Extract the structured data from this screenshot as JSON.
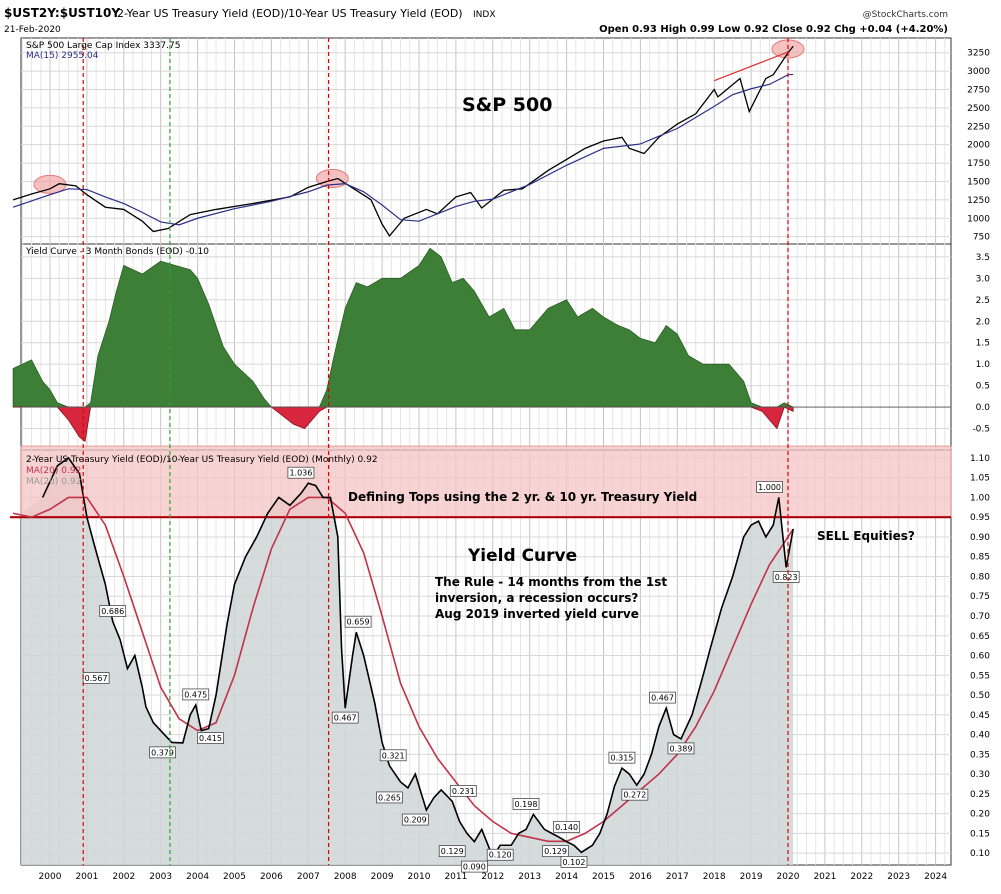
{
  "header": {
    "symbol": "$UST2Y:$UST10Y",
    "name": "2-Year US Treasury Yield (EOD)/10-Year US Treasury Yield (EOD)",
    "exchange": "INDX",
    "credit": "@StockCharts.com",
    "date": "21-Feb-2020",
    "ohlc": "Open 0.93  High 0.99  Low 0.92  Close 0.92  Chg +0.04 (+4.20%)"
  },
  "colors": {
    "green_fill": "#3d7f36",
    "red_fill": "#d7263d",
    "ma_red": "#c0334a",
    "sp_ma": "#2c2f88",
    "band_fill": "#f5c4c4",
    "area_fill": "#cfd6d6",
    "threshold": "#b0000a",
    "event_red": "#e00000",
    "event_green": "#2ea32e"
  },
  "chart_data": [
    {
      "type": "line",
      "panel": "S&P 500",
      "legend": [
        "S&P 500 Large Cap Index 3337.75",
        "MA(15) 2955.04"
      ],
      "annotation": "S&P 500",
      "ylim": [
        650,
        3450
      ],
      "yticks": [
        750,
        1000,
        1250,
        1500,
        1750,
        2000,
        2250,
        2500,
        2750,
        3000,
        3250
      ],
      "series": [
        {
          "name": "S&P 500 Large Cap Index",
          "x": [
            1999.0,
            1999.5,
            2000.0,
            2000.25,
            2000.7,
            2001.0,
            2001.5,
            2002.0,
            2002.5,
            2002.8,
            2003.2,
            2003.8,
            2004.5,
            2005.5,
            2006.5,
            2007.0,
            2007.5,
            2007.8,
            2008.3,
            2008.7,
            2009.0,
            2009.2,
            2009.6,
            2010.2,
            2010.5,
            2011.0,
            2011.4,
            2011.7,
            2012.3,
            2012.8,
            2013.5,
            2014.0,
            2014.5,
            2015.0,
            2015.5,
            2015.7,
            2016.1,
            2016.5,
            2017.0,
            2017.5,
            2018.0,
            2018.1,
            2018.7,
            2018.95,
            2019.4,
            2019.6,
            2020.0,
            2020.14
          ],
          "y": [
            1250,
            1330,
            1400,
            1470,
            1440,
            1320,
            1150,
            1120,
            960,
            820,
            860,
            1050,
            1120,
            1200,
            1290,
            1420,
            1500,
            1540,
            1380,
            1250,
            920,
            760,
            1000,
            1120,
            1060,
            1290,
            1350,
            1140,
            1380,
            1400,
            1650,
            1800,
            1950,
            2050,
            2100,
            1950,
            1880,
            2100,
            2280,
            2420,
            2750,
            2650,
            2900,
            2450,
            2900,
            2950,
            3250,
            3337
          ]
        },
        {
          "name": "MA(15)",
          "x": [
            1999.0,
            2000.0,
            2000.5,
            2001.0,
            2001.5,
            2002.0,
            2002.5,
            2003.0,
            2003.5,
            2004.0,
            2005.0,
            2006.0,
            2007.0,
            2007.5,
            2008.0,
            2008.5,
            2009.0,
            2009.5,
            2010.0,
            2010.5,
            2011.0,
            2011.5,
            2012.0,
            2013.0,
            2014.0,
            2015.0,
            2016.0,
            2017.0,
            2018.0,
            2018.5,
            2019.0,
            2019.5,
            2020.0,
            2020.14
          ],
          "y": [
            1150,
            1320,
            1400,
            1390,
            1290,
            1200,
            1080,
            950,
            910,
            1000,
            1130,
            1230,
            1360,
            1450,
            1470,
            1360,
            1180,
            980,
            960,
            1060,
            1160,
            1230,
            1260,
            1460,
            1720,
            1950,
            2010,
            2220,
            2520,
            2680,
            2760,
            2820,
            2950,
            2955
          ]
        }
      ]
    },
    {
      "type": "area",
      "panel": "Yield Curve - 3 Month Bonds",
      "legend": [
        "Yield Curve - 3 Month Bonds (EOD) -0.10"
      ],
      "ylim": [
        -1.0,
        3.8
      ],
      "yticks": [
        -0.5,
        0.0,
        0.5,
        1.0,
        1.5,
        2.0,
        2.5,
        3.0,
        3.5
      ],
      "x": [
        1999.0,
        1999.5,
        1999.8,
        2000.0,
        2000.2,
        2000.5,
        2000.8,
        2000.95,
        2001.1,
        2001.3,
        2001.6,
        2001.8,
        2002.0,
        2002.5,
        2003.0,
        2003.4,
        2003.8,
        2004.0,
        2004.3,
        2004.7,
        2005.0,
        2005.5,
        2005.8,
        2006.0,
        2006.3,
        2006.6,
        2006.9,
        2007.1,
        2007.3,
        2007.5,
        2007.7,
        2008.0,
        2008.3,
        2008.6,
        2009.0,
        2009.5,
        2010.0,
        2010.3,
        2010.6,
        2010.9,
        2011.2,
        2011.5,
        2011.9,
        2012.3,
        2012.6,
        2013.0,
        2013.5,
        2014.0,
        2014.3,
        2014.7,
        2015.0,
        2015.4,
        2015.7,
        2016.0,
        2016.4,
        2016.7,
        2017.0,
        2017.3,
        2017.7,
        2018.0,
        2018.4,
        2018.8,
        2019.0,
        2019.3,
        2019.5,
        2019.7,
        2019.9,
        2020.14
      ],
      "y": [
        0.9,
        1.1,
        0.6,
        0.4,
        0.1,
        -0.3,
        -0.7,
        -0.8,
        0.1,
        1.2,
        2.0,
        2.7,
        3.3,
        3.1,
        3.4,
        3.3,
        3.2,
        3.0,
        2.4,
        1.4,
        1.0,
        0.6,
        0.2,
        0.0,
        -0.2,
        -0.4,
        -0.5,
        -0.3,
        -0.1,
        0.4,
        1.2,
        2.3,
        2.9,
        2.8,
        3.0,
        3.0,
        3.3,
        3.7,
        3.5,
        2.9,
        3.0,
        2.7,
        2.1,
        2.3,
        1.8,
        1.8,
        2.3,
        2.5,
        2.1,
        2.3,
        2.1,
        1.9,
        1.8,
        1.6,
        1.5,
        1.9,
        1.7,
        1.2,
        1.0,
        1.0,
        1.0,
        0.6,
        0.1,
        -0.1,
        -0.3,
        -0.5,
        0.1,
        -0.1
      ]
    },
    {
      "type": "line",
      "panel": "Yield Curve",
      "legend": [
        "2-Year US Treasury Yield (EOD)/10-Year US Treasury Yield (EOD) (Monthly) 0.92",
        "MA(20) 0.92",
        "MA(20) 0.92"
      ],
      "band_title": "Defining Tops using the 2 yr. & 10 yr. Treasury Yield",
      "annotation_title": "Yield Curve",
      "rule_text": [
        "The Rule - 14 months from the 1st",
        "inversion, a recession occurs?",
        "Aug 2019 inverted yield curve"
      ],
      "sell_text": "SELL Equities?",
      "ylim": [
        0.07,
        1.12
      ],
      "yticks": [
        0.1,
        0.15,
        0.2,
        0.25,
        0.3,
        0.35,
        0.4,
        0.45,
        0.5,
        0.55,
        0.6,
        0.65,
        0.7,
        0.75,
        0.8,
        0.85,
        0.9,
        0.95,
        1.0,
        1.05,
        1.1
      ],
      "band": [
        0.95,
        1.13
      ],
      "threshold": 0.95,
      "series": [
        {
          "name": "2-Year US Treasury Yield (EOD)/10-Year US Treasury Yield (EOD)",
          "x": [
            1999.8,
            2000.2,
            2000.5,
            2000.8,
            2001.0,
            2001.2,
            2001.5,
            2001.7,
            2001.9,
            2002.1,
            2002.3,
            2002.5,
            2002.6,
            2002.8,
            2003.1,
            2003.3,
            2003.6,
            2003.8,
            2003.95,
            2004.1,
            2004.3,
            2004.5,
            2004.8,
            2005.0,
            2005.3,
            2005.6,
            2005.9,
            2006.2,
            2006.5,
            2006.8,
            2007.0,
            2007.2,
            2007.4,
            2007.6,
            2007.8,
            2007.9,
            2008.0,
            2008.2,
            2008.3,
            2008.5,
            2008.8,
            2009.0,
            2009.2,
            2009.5,
            2009.7,
            2009.9,
            2010.2,
            2010.4,
            2010.6,
            2010.9,
            2011.1,
            2011.3,
            2011.5,
            2011.7,
            2012.0,
            2012.2,
            2012.5,
            2012.7,
            2012.9,
            2013.1,
            2013.4,
            2013.6,
            2013.8,
            2014.0,
            2014.2,
            2014.4,
            2014.7,
            2014.9,
            2015.1,
            2015.3,
            2015.5,
            2015.7,
            2015.9,
            2016.1,
            2016.3,
            2016.5,
            2016.7,
            2016.9,
            2017.1,
            2017.4,
            2017.7,
            2017.9,
            2018.2,
            2018.5,
            2018.8,
            2019.0,
            2019.2,
            2019.4,
            2019.6,
            2019.75,
            2019.95,
            2020.14
          ],
          "y": [
            1.0,
            1.08,
            1.1,
            1.06,
            0.95,
            0.88,
            0.78,
            0.686,
            0.64,
            0.567,
            0.6,
            0.52,
            0.47,
            0.43,
            0.4,
            0.38,
            0.379,
            0.45,
            0.475,
            0.41,
            0.415,
            0.5,
            0.68,
            0.78,
            0.85,
            0.9,
            0.96,
            1.0,
            0.98,
            1.01,
            1.036,
            1.03,
            1.0,
            1.0,
            0.9,
            0.62,
            0.467,
            0.6,
            0.659,
            0.6,
            0.48,
            0.38,
            0.321,
            0.28,
            0.265,
            0.3,
            0.209,
            0.24,
            0.26,
            0.231,
            0.18,
            0.15,
            0.129,
            0.16,
            0.09,
            0.12,
            0.12,
            0.15,
            0.16,
            0.198,
            0.16,
            0.15,
            0.14,
            0.129,
            0.12,
            0.102,
            0.12,
            0.15,
            0.2,
            0.27,
            0.315,
            0.3,
            0.272,
            0.3,
            0.35,
            0.42,
            0.467,
            0.4,
            0.389,
            0.45,
            0.55,
            0.62,
            0.72,
            0.8,
            0.9,
            0.93,
            0.94,
            0.9,
            0.93,
            1.0,
            0.823,
            0.92
          ]
        },
        {
          "name": "MA(20)",
          "x": [
            1999.0,
            1999.5,
            2000.0,
            2000.5,
            2001.0,
            2001.5,
            2002.0,
            2002.5,
            2003.0,
            2003.5,
            2004.0,
            2004.5,
            2005.0,
            2005.5,
            2006.0,
            2006.5,
            2007.0,
            2007.5,
            2008.0,
            2008.5,
            2009.0,
            2009.5,
            2010.0,
            2010.5,
            2011.0,
            2011.5,
            2012.0,
            2012.5,
            2013.0,
            2013.5,
            2014.0,
            2014.5,
            2015.0,
            2015.5,
            2016.0,
            2016.5,
            2017.0,
            2017.5,
            2018.0,
            2018.5,
            2019.0,
            2019.5,
            2020.0,
            2020.14
          ],
          "y": [
            0.96,
            0.95,
            0.97,
            1.0,
            1.0,
            0.93,
            0.8,
            0.66,
            0.52,
            0.44,
            0.41,
            0.43,
            0.55,
            0.72,
            0.87,
            0.97,
            1.0,
            1.0,
            0.96,
            0.86,
            0.7,
            0.53,
            0.42,
            0.34,
            0.28,
            0.22,
            0.18,
            0.15,
            0.14,
            0.13,
            0.13,
            0.15,
            0.18,
            0.22,
            0.26,
            0.3,
            0.35,
            0.42,
            0.51,
            0.62,
            0.73,
            0.83,
            0.9,
            0.92
          ]
        }
      ],
      "labels": [
        {
          "x": 2006.8,
          "y": 1.036,
          "text": "1.036"
        },
        {
          "x": 2001.7,
          "y": 0.686,
          "text": "0.686"
        },
        {
          "x": 2001.25,
          "y": 0.567,
          "text": "0.567"
        },
        {
          "x": 2003.95,
          "y": 0.475,
          "text": "0.475"
        },
        {
          "x": 2003.05,
          "y": 0.379,
          "text": "0.379"
        },
        {
          "x": 2004.35,
          "y": 0.415,
          "text": "0.415"
        },
        {
          "x": 2008.35,
          "y": 0.659,
          "text": "0.659"
        },
        {
          "x": 2008.0,
          "y": 0.467,
          "text": "0.467"
        },
        {
          "x": 2009.3,
          "y": 0.321,
          "text": "0.321"
        },
        {
          "x": 2009.2,
          "y": 0.265,
          "text": "0.265"
        },
        {
          "x": 2009.9,
          "y": 0.209,
          "text": "0.209"
        },
        {
          "x": 2011.2,
          "y": 0.231,
          "text": "0.231"
        },
        {
          "x": 2010.9,
          "y": 0.129,
          "text": "0.129"
        },
        {
          "x": 2011.5,
          "y": 0.09,
          "text": "0.090"
        },
        {
          "x": 2012.2,
          "y": 0.12,
          "text": "0.120"
        },
        {
          "x": 2012.9,
          "y": 0.198,
          "text": "0.198"
        },
        {
          "x": 2014.0,
          "y": 0.14,
          "text": "0.140"
        },
        {
          "x": 2013.7,
          "y": 0.129,
          "text": "0.129"
        },
        {
          "x": 2014.2,
          "y": 0.102,
          "text": "0.102"
        },
        {
          "x": 2015.5,
          "y": 0.315,
          "text": "0.315"
        },
        {
          "x": 2015.85,
          "y": 0.272,
          "text": "0.272"
        },
        {
          "x": 2016.6,
          "y": 0.467,
          "text": "0.467"
        },
        {
          "x": 2017.1,
          "y": 0.389,
          "text": "0.389"
        },
        {
          "x": 2019.5,
          "y": 1.0,
          "text": "1.000"
        },
        {
          "x": 2019.95,
          "y": 0.823,
          "text": "0.823"
        }
      ],
      "years": [
        "2000",
        "2001",
        "2002",
        "2003",
        "2004",
        "2005",
        "2006",
        "2007",
        "2008",
        "2009",
        "2010",
        "2011",
        "2012",
        "2013",
        "2014",
        "2015",
        "2016",
        "2017",
        "2018",
        "2019",
        "2020",
        "2021",
        "2022",
        "2023",
        "2024"
      ],
      "events": [
        {
          "x": 2000.9,
          "color": "red"
        },
        {
          "x": 2003.25,
          "color": "green"
        },
        {
          "x": 2007.55,
          "color": "red"
        },
        {
          "x": 2020.0,
          "color": "red"
        }
      ]
    }
  ]
}
